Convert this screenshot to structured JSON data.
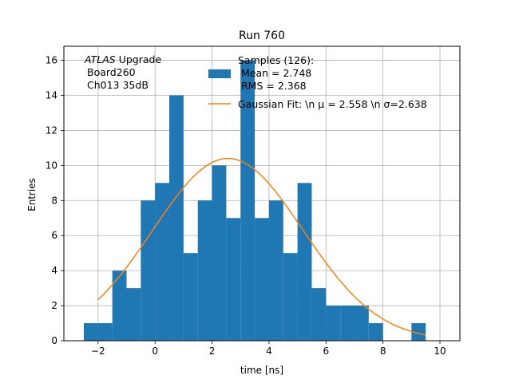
{
  "chart_data": {
    "type": "bar",
    "title": "Run 760",
    "xlabel": "time [ns]",
    "ylabel": "Entries",
    "xlim": [
      -3.2,
      10.7
    ],
    "ylim": [
      0,
      16.8
    ],
    "grid": true,
    "xticks": [
      -2,
      0,
      2,
      4,
      6,
      8,
      10
    ],
    "xtick_labels": [
      "−2",
      "0",
      "2",
      "4",
      "6",
      "8",
      "10"
    ],
    "yticks": [
      0,
      2,
      4,
      6,
      8,
      10,
      12,
      14,
      16
    ],
    "ytick_labels": [
      "0",
      "2",
      "4",
      "6",
      "8",
      "10",
      "12",
      "14",
      "16"
    ],
    "annotation": {
      "line1_italic": "ATLAS",
      "line1_rest": " Upgrade",
      "line2": "Board260",
      "line3": "Ch013 35dB"
    },
    "histogram": {
      "name_lines": [
        "Samples (126):",
        "Mean = 2.748",
        "RMS = 2.368"
      ],
      "color": "#1f77b4",
      "bin_edges": [
        -2.5,
        -2.0,
        -1.5,
        -1.0,
        -0.5,
        0.0,
        0.5,
        1.0,
        1.5,
        2.0,
        2.5,
        3.0,
        3.5,
        4.0,
        4.5,
        5.0,
        5.5,
        6.0,
        6.5,
        7.0,
        7.5,
        8.0,
        8.5,
        9.0,
        9.5,
        10.0
      ],
      "counts": [
        1,
        1,
        4,
        3,
        8,
        9,
        14,
        5,
        8,
        10,
        7,
        16,
        7,
        8,
        5,
        9,
        3,
        2,
        2,
        2,
        1,
        0,
        0,
        1,
        0
      ]
    },
    "fit": {
      "name": "Gaussian Fit: \\n μ = 2.558 \\n σ=2.638",
      "color": "#ff7f0e",
      "amplitude": 10.4,
      "mu": 2.558,
      "sigma": 2.638,
      "x_range": [
        -2.0,
        9.5
      ]
    },
    "legend_position": "upper-center"
  }
}
